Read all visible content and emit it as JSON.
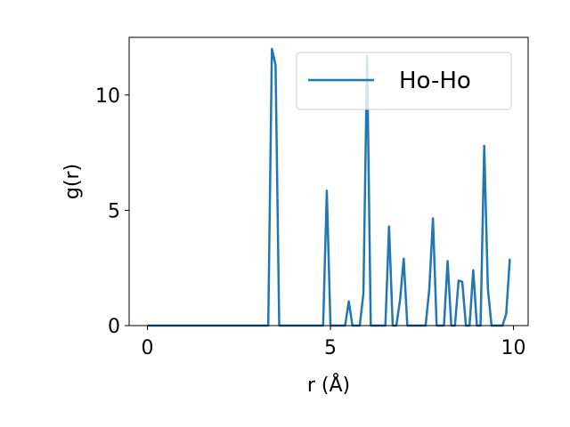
{
  "chart_data": {
    "type": "line",
    "xlabel": "r (Å)",
    "ylabel": "g(r)",
    "xlim": [
      -0.5,
      10.4
    ],
    "ylim": [
      0,
      12.5
    ],
    "xticks": [
      0,
      5,
      10
    ],
    "yticks": [
      0,
      5,
      10
    ],
    "grid": false,
    "legend": "top-right",
    "series": [
      {
        "name": "Ho-Ho",
        "color": "#1f77b4",
        "x": [
          0.0,
          0.1,
          0.2,
          0.3,
          0.4,
          0.5,
          0.6,
          0.7,
          0.8,
          0.9,
          1.0,
          1.1,
          1.2,
          1.3,
          1.4,
          1.5,
          1.6,
          1.7,
          1.8,
          1.9,
          2.0,
          2.1,
          2.2,
          2.3,
          2.4,
          2.5,
          2.6,
          2.7,
          2.8,
          2.9,
          3.0,
          3.1,
          3.2,
          3.3,
          3.4,
          3.5,
          3.6,
          3.7,
          3.8,
          3.9,
          4.0,
          4.1,
          4.2,
          4.3,
          4.4,
          4.5,
          4.6,
          4.7,
          4.8,
          4.9,
          5.0,
          5.1,
          5.2,
          5.3,
          5.4,
          5.5,
          5.6,
          5.7,
          5.8,
          5.9,
          6.0,
          6.1,
          6.2,
          6.3,
          6.4,
          6.5,
          6.6,
          6.7,
          6.8,
          6.9,
          7.0,
          7.1,
          7.2,
          7.3,
          7.4,
          7.5,
          7.6,
          7.7,
          7.8,
          7.9,
          8.0,
          8.1,
          8.2,
          8.3,
          8.4,
          8.5,
          8.6,
          8.7,
          8.8,
          8.9,
          9.0,
          9.1,
          9.2,
          9.3,
          9.4,
          9.5,
          9.6,
          9.7,
          9.8,
          9.9
        ],
        "y": [
          0,
          0,
          0,
          0,
          0,
          0,
          0,
          0,
          0,
          0,
          0,
          0,
          0,
          0,
          0,
          0,
          0,
          0,
          0,
          0,
          0,
          0,
          0,
          0,
          0,
          0,
          0,
          0,
          0,
          0,
          0,
          0,
          0,
          0,
          12.0,
          11.3,
          0,
          0,
          0,
          0,
          0,
          0,
          0,
          0,
          0,
          0,
          0,
          0,
          0,
          5.85,
          0,
          0,
          0,
          0,
          0,
          1.05,
          0,
          0,
          0,
          1.4,
          11.7,
          0,
          0,
          0,
          0,
          0,
          4.3,
          0,
          0,
          1.1,
          2.9,
          0,
          0,
          0,
          0,
          0,
          0,
          1.6,
          4.65,
          0,
          0,
          0,
          2.8,
          0,
          0,
          1.95,
          1.9,
          0,
          0,
          2.4,
          0,
          0,
          7.8,
          1.6,
          0,
          0,
          0,
          0,
          0.5,
          2.9
        ]
      }
    ]
  }
}
